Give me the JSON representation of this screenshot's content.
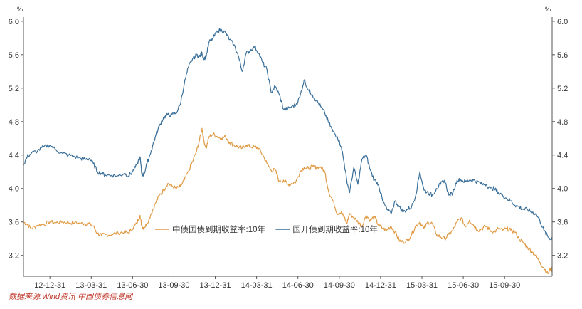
{
  "chart_data": {
    "type": "line",
    "ylabel_left": "%",
    "ylabel_right": "%",
    "ylim": [
      2.95,
      6.05
    ],
    "yticks": [
      "6.0",
      "5.6",
      "5.2",
      "4.8",
      "4.4",
      "4.0",
      "3.6",
      "3.2"
    ],
    "ytick_values": [
      6.0,
      5.6,
      5.2,
      4.8,
      4.4,
      4.0,
      3.6,
      3.2
    ],
    "xticks": [
      "12-12-31",
      "13-03-31",
      "13-06-30",
      "13-09-30",
      "13-12-31",
      "14-03-31",
      "14-06-30",
      "14-09-30",
      "14-12-31",
      "15-03-31",
      "15-06-30",
      "15-09-30"
    ],
    "xtick_index": [
      1,
      2,
      3,
      4,
      5,
      6,
      7,
      8,
      9,
      10,
      11,
      12
    ],
    "xrange": [
      0.36,
      13.15
    ],
    "grid": false,
    "legend_position": "bottom-center",
    "source": "数据来源:Wind资讯 中国债券信息网",
    "series": [
      {
        "name": "中债国债到期收益率:10年",
        "color": "#e09a43",
        "x": [
          0.36,
          0.45,
          0.55,
          0.7,
          0.85,
          1.0,
          1.15,
          1.3,
          1.45,
          1.6,
          1.75,
          1.85,
          1.95,
          2.05,
          2.15,
          2.25,
          2.35,
          2.5,
          2.65,
          2.8,
          2.9,
          3.0,
          3.1,
          3.18,
          3.22,
          3.27,
          3.35,
          3.45,
          3.55,
          3.65,
          3.75,
          3.85,
          3.95,
          4.05,
          4.15,
          4.25,
          4.35,
          4.45,
          4.55,
          4.62,
          4.68,
          4.72,
          4.78,
          4.85,
          4.95,
          5.05,
          5.15,
          5.25,
          5.35,
          5.45,
          5.55,
          5.65,
          5.75,
          5.85,
          5.95,
          6.05,
          6.15,
          6.25,
          6.35,
          6.45,
          6.55,
          6.65,
          6.75,
          6.85,
          6.95,
          7.05,
          7.15,
          7.25,
          7.35,
          7.45,
          7.55,
          7.65,
          7.75,
          7.85,
          7.95,
          8.05,
          8.12,
          8.18,
          8.25,
          8.35,
          8.45,
          8.55,
          8.65,
          8.75,
          8.85,
          8.95,
          9.05,
          9.15,
          9.25,
          9.35,
          9.45,
          9.55,
          9.65,
          9.75,
          9.85,
          9.95,
          10.05,
          10.15,
          10.25,
          10.35,
          10.45,
          10.55,
          10.65,
          10.75,
          10.85,
          10.95,
          11.05,
          11.15,
          11.25,
          11.35,
          11.45,
          11.55,
          11.65,
          11.75,
          11.85,
          11.95,
          12.05,
          12.15,
          12.25,
          12.35,
          12.45,
          12.55,
          12.65,
          12.75,
          12.85,
          12.95,
          13.05,
          13.12,
          13.15
        ],
        "y": [
          3.6,
          3.57,
          3.52,
          3.56,
          3.57,
          3.6,
          3.59,
          3.6,
          3.59,
          3.59,
          3.58,
          3.58,
          3.58,
          3.55,
          3.46,
          3.44,
          3.45,
          3.45,
          3.47,
          3.48,
          3.47,
          3.52,
          3.58,
          3.68,
          3.55,
          3.53,
          3.58,
          3.7,
          3.82,
          3.92,
          3.98,
          4.06,
          4.03,
          4.0,
          4.02,
          4.1,
          4.2,
          4.32,
          4.45,
          4.58,
          4.72,
          4.58,
          4.48,
          4.62,
          4.65,
          4.62,
          4.6,
          4.62,
          4.55,
          4.52,
          4.5,
          4.48,
          4.52,
          4.5,
          4.5,
          4.48,
          4.4,
          4.3,
          4.22,
          4.22,
          4.08,
          4.1,
          4.05,
          4.06,
          4.08,
          4.2,
          4.25,
          4.24,
          4.26,
          4.25,
          4.26,
          4.2,
          3.95,
          3.85,
          3.7,
          3.72,
          3.65,
          3.58,
          3.7,
          3.65,
          3.6,
          3.55,
          3.68,
          3.62,
          3.66,
          3.56,
          3.52,
          3.5,
          3.55,
          3.48,
          3.38,
          3.36,
          3.38,
          3.45,
          3.55,
          3.6,
          3.52,
          3.6,
          3.58,
          3.45,
          3.42,
          3.4,
          3.45,
          3.5,
          3.6,
          3.65,
          3.54,
          3.62,
          3.56,
          3.5,
          3.52,
          3.55,
          3.5,
          3.48,
          3.52,
          3.5,
          3.52,
          3.5,
          3.48,
          3.4,
          3.35,
          3.3,
          3.25,
          3.2,
          3.12,
          3.05,
          2.98,
          3.05,
          3.02
        ]
      },
      {
        "name": "国开债到期收益率:10年",
        "color": "#3a6f99",
        "x": [
          0.36,
          0.45,
          0.55,
          0.7,
          0.85,
          1.0,
          1.15,
          1.3,
          1.45,
          1.6,
          1.75,
          1.85,
          1.95,
          2.05,
          2.15,
          2.25,
          2.35,
          2.5,
          2.65,
          2.8,
          2.9,
          3.0,
          3.1,
          3.18,
          3.22,
          3.27,
          3.35,
          3.45,
          3.55,
          3.65,
          3.75,
          3.85,
          3.95,
          4.05,
          4.15,
          4.25,
          4.35,
          4.45,
          4.55,
          4.62,
          4.68,
          4.72,
          4.78,
          4.85,
          4.95,
          5.05,
          5.15,
          5.25,
          5.35,
          5.45,
          5.55,
          5.65,
          5.75,
          5.85,
          5.95,
          6.05,
          6.15,
          6.25,
          6.35,
          6.45,
          6.55,
          6.65,
          6.75,
          6.85,
          6.95,
          7.05,
          7.15,
          7.25,
          7.35,
          7.45,
          7.55,
          7.65,
          7.75,
          7.85,
          7.95,
          8.05,
          8.12,
          8.18,
          8.25,
          8.35,
          8.45,
          8.55,
          8.65,
          8.75,
          8.85,
          8.95,
          9.05,
          9.15,
          9.25,
          9.35,
          9.45,
          9.55,
          9.65,
          9.75,
          9.85,
          9.95,
          10.05,
          10.15,
          10.25,
          10.35,
          10.45,
          10.55,
          10.65,
          10.75,
          10.85,
          10.95,
          11.05,
          11.15,
          11.25,
          11.35,
          11.45,
          11.55,
          11.65,
          11.75,
          11.85,
          11.95,
          12.05,
          12.15,
          12.25,
          12.35,
          12.45,
          12.55,
          12.65,
          12.75,
          12.85,
          12.95,
          13.05,
          13.12,
          13.15
        ],
        "y": [
          4.28,
          4.38,
          4.42,
          4.45,
          4.5,
          4.52,
          4.46,
          4.42,
          4.4,
          4.38,
          4.36,
          4.35,
          4.36,
          4.3,
          4.2,
          4.18,
          4.16,
          4.16,
          4.15,
          4.18,
          4.15,
          4.2,
          4.28,
          4.38,
          4.18,
          4.16,
          4.3,
          4.45,
          4.62,
          4.75,
          4.85,
          4.88,
          4.88,
          4.9,
          5.0,
          5.25,
          5.45,
          5.55,
          5.6,
          5.58,
          5.62,
          5.55,
          5.58,
          5.75,
          5.8,
          5.88,
          5.9,
          5.86,
          5.78,
          5.72,
          5.6,
          5.4,
          5.62,
          5.65,
          5.7,
          5.62,
          5.5,
          5.42,
          5.15,
          5.22,
          5.12,
          4.95,
          4.95,
          4.98,
          5.0,
          5.1,
          5.3,
          5.18,
          5.12,
          5.05,
          4.98,
          4.9,
          4.78,
          4.68,
          4.62,
          4.5,
          4.3,
          4.1,
          3.95,
          4.25,
          4.05,
          4.35,
          4.4,
          4.22,
          4.1,
          4.05,
          3.85,
          3.75,
          3.7,
          3.85,
          3.78,
          3.72,
          3.75,
          3.78,
          3.92,
          4.2,
          3.98,
          3.95,
          3.92,
          4.0,
          4.05,
          4.1,
          3.92,
          3.95,
          4.1,
          4.1,
          4.08,
          4.1,
          4.1,
          4.08,
          4.05,
          4.05,
          4.0,
          4.0,
          3.95,
          3.92,
          3.88,
          3.85,
          3.8,
          3.78,
          3.75,
          3.75,
          3.72,
          3.7,
          3.62,
          3.5,
          3.42,
          3.4,
          3.42
        ]
      }
    ]
  }
}
